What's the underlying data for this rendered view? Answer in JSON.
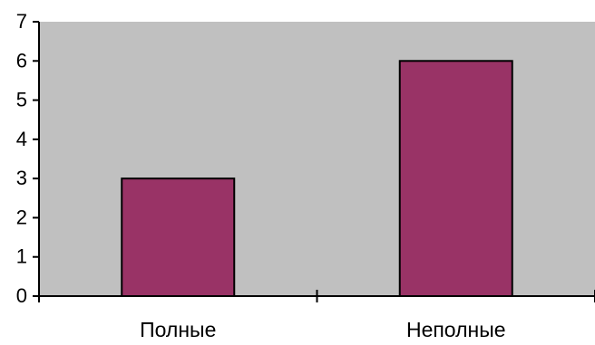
{
  "chart_data": {
    "type": "bar",
    "categories": [
      "Полные",
      "Неполные"
    ],
    "values": [
      3,
      6
    ],
    "y_ticks": [
      "0",
      "1",
      "2",
      "3",
      "4",
      "5",
      "6",
      "7"
    ],
    "ylim": [
      0,
      7
    ],
    "grid": false,
    "legend": "none",
    "colors": {
      "plot_background": "#c0c0c0",
      "bar_fill": "#993366",
      "bar_stroke": "#000000",
      "axis": "#000000"
    }
  }
}
